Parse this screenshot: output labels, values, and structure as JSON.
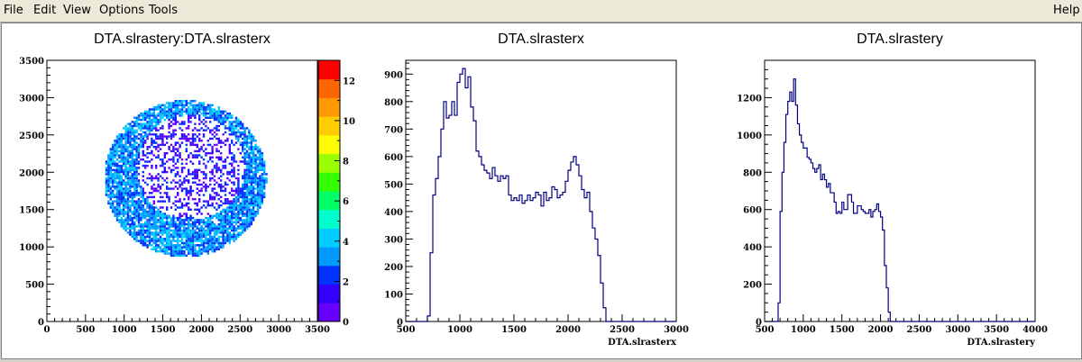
{
  "menu": {
    "file": "File",
    "edit": "Edit",
    "view": "View",
    "options": "Options",
    "tools": "Tools",
    "help": "Help"
  },
  "colors": {
    "histline": "#000080",
    "palette": [
      "#6600ff",
      "#3300ff",
      "#0033ff",
      "#0099ff",
      "#00ccff",
      "#00ffcc",
      "#00ff66",
      "#33ff00",
      "#99ff00",
      "#ffff00",
      "#ffcc00",
      "#ff9900",
      "#ff6600",
      "#ff0000"
    ]
  },
  "chart_data": [
    {
      "type": "heatmap",
      "title": "DTA.slrastery:DTA.slrasterx",
      "xlabel": "",
      "ylabel": "",
      "xlim": [
        0,
        3500
      ],
      "ylim": [
        0,
        3500
      ],
      "x_ticks": [
        "0",
        "500",
        "1000",
        "1500",
        "2000",
        "2500",
        "3000",
        "3500"
      ],
      "y_ticks": [
        "0",
        "500",
        "1000",
        "1500",
        "2000",
        "2500",
        "3000",
        "3500"
      ],
      "colorbar": {
        "range": [
          0,
          13
        ],
        "ticks": [
          "0",
          "2",
          "4",
          "6",
          "8",
          "10",
          "12"
        ]
      },
      "distribution": {
        "outer_ring": {
          "center": [
            1780,
            1900
          ],
          "radius": 1050
        },
        "inner_sparse": {
          "center": [
            1850,
            2050
          ],
          "radius": 700
        }
      }
    },
    {
      "type": "histogram",
      "title": "DTA.slrasterx",
      "xlabel": "DTA.slrasterx",
      "ylabel": "",
      "xlim": [
        500,
        3000
      ],
      "ylim": [
        0,
        950
      ],
      "x_ticks": [
        "500",
        "1000",
        "1500",
        "2000",
        "2500",
        "3000"
      ],
      "y_ticks": [
        "0",
        "100",
        "200",
        "300",
        "400",
        "500",
        "600",
        "700",
        "800",
        "900"
      ],
      "bin_width": 25,
      "x_start": 500,
      "values": [
        0,
        0,
        0,
        0,
        0,
        0,
        0,
        0,
        20,
        250,
        460,
        520,
        600,
        700,
        800,
        740,
        750,
        800,
        750,
        870,
        900,
        920,
        850,
        890,
        780,
        730,
        620,
        600,
        570,
        550,
        540,
        520,
        560,
        530,
        510,
        530,
        520,
        530,
        460,
        440,
        450,
        440,
        460,
        430,
        440,
        460,
        440,
        450,
        470,
        460,
        420,
        470,
        440,
        450,
        490,
        480,
        450,
        460,
        470,
        510,
        550,
        580,
        600,
        570,
        530,
        480,
        450,
        470,
        400,
        340,
        300,
        240,
        140,
        50,
        0,
        0,
        0,
        0,
        0,
        0,
        0,
        0,
        0,
        0,
        0,
        0,
        0,
        0,
        0,
        0,
        0,
        0,
        0,
        0,
        0,
        0,
        0,
        0,
        0,
        0
      ]
    },
    {
      "type": "histogram",
      "title": "DTA.slrastery",
      "xlabel": "DTA.slrastery",
      "ylabel": "",
      "xlim": [
        500,
        4000
      ],
      "ylim": [
        0,
        1400
      ],
      "x_ticks": [
        "500",
        "1000",
        "1500",
        "2000",
        "2500",
        "3000",
        "3500",
        "4000"
      ],
      "y_ticks": [
        "0",
        "200",
        "400",
        "600",
        "800",
        "1000",
        "1200"
      ],
      "bin_width": 25,
      "x_start": 500,
      "values": [
        0,
        0,
        0,
        0,
        0,
        0,
        0,
        100,
        590,
        800,
        960,
        1110,
        1180,
        1230,
        1180,
        1300,
        1160,
        1060,
        1000,
        960,
        930,
        930,
        880,
        870,
        850,
        820,
        800,
        820,
        840,
        760,
        790,
        760,
        720,
        740,
        690,
        690,
        640,
        580,
        590,
        580,
        640,
        600,
        600,
        680,
        680,
        640,
        580,
        580,
        620,
        620,
        600,
        590,
        580,
        580,
        600,
        560,
        590,
        600,
        630,
        590,
        560,
        490,
        300,
        180,
        50,
        0,
        0,
        0,
        0,
        0,
        0,
        0,
        0,
        0,
        0,
        0,
        0,
        0,
        0,
        0,
        0,
        0,
        0,
        0,
        0,
        0,
        0,
        0,
        0,
        0,
        0,
        0,
        0,
        0,
        0,
        0,
        0,
        0,
        0,
        0,
        0,
        0,
        0,
        0,
        0,
        0,
        0,
        0,
        0,
        0,
        0,
        0,
        0,
        0,
        0,
        0,
        0,
        0,
        0,
        0,
        0,
        0,
        0,
        0,
        0,
        0,
        0,
        0,
        0,
        0,
        0,
        0,
        0,
        0,
        0,
        0,
        0,
        0,
        0,
        0
      ]
    }
  ]
}
